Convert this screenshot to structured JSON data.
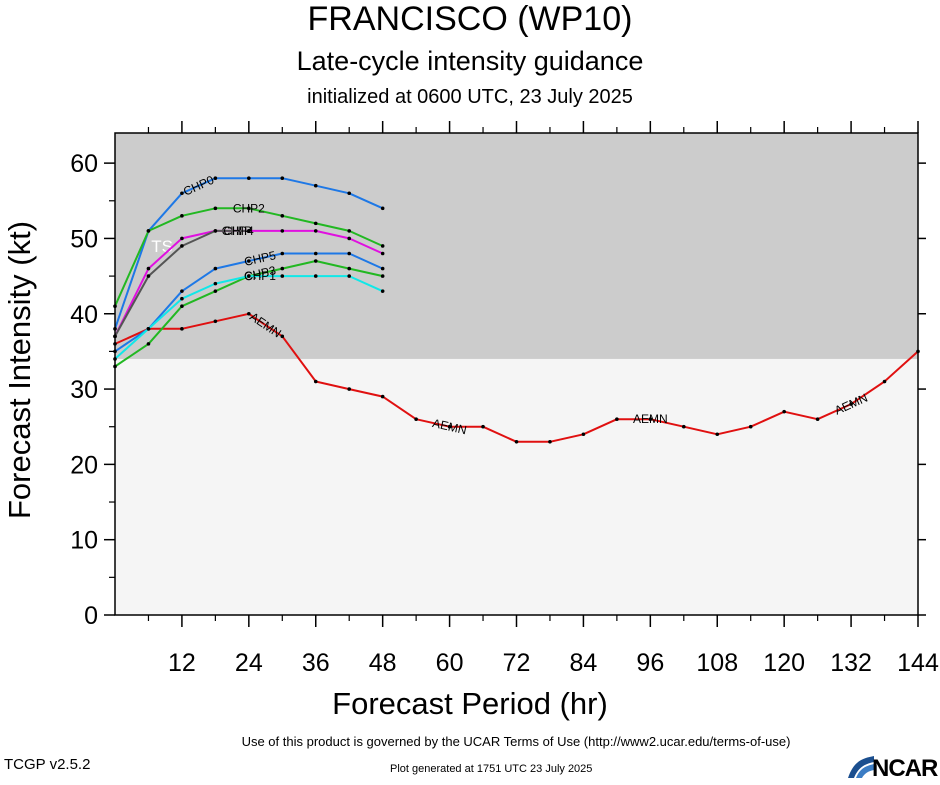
{
  "header": {
    "title": "FRANCISCO (WP10)",
    "subtitle": "Late-cycle intensity guidance",
    "initialized": "initialized at 0600 UTC, 23 July 2025"
  },
  "footer": {
    "terms": "Use of this product is governed by the UCAR Terms of Use (http://www2.ucar.edu/terms-of-use)",
    "version": "TCGP v2.5.2",
    "generated": "Plot generated at 1751 UTC   23 July 2025",
    "logo_text": "NCAR"
  },
  "colors": {
    "storm_band": "#cccccc",
    "below_band": "#f5f5f5"
  },
  "chart_data": {
    "type": "line",
    "xlabel": "Forecast Period (hr)",
    "ylabel": "Forecast Intensity (kt)",
    "xlim": [
      0,
      144
    ],
    "ylim": [
      0,
      64
    ],
    "xticks": [
      12,
      24,
      36,
      48,
      60,
      72,
      84,
      96,
      108,
      120,
      132,
      144
    ],
    "yticks": [
      0,
      10,
      20,
      30,
      40,
      50,
      60
    ],
    "shaded_band": {
      "from": 34,
      "to": 64,
      "label": "TS"
    },
    "grid": false,
    "series": [
      {
        "name": "AEMN",
        "color": "#e01010",
        "x": [
          0,
          6,
          12,
          18,
          24,
          30,
          36,
          42,
          48,
          54,
          60,
          66,
          72,
          78,
          84,
          90,
          96,
          102,
          108,
          114,
          120,
          126,
          132,
          138,
          144
        ],
        "values": [
          36,
          38,
          38,
          39,
          40,
          37,
          31,
          30,
          29,
          26,
          25,
          25,
          23,
          23,
          24,
          26,
          26,
          25,
          24,
          25,
          27,
          26,
          28,
          31,
          35
        ],
        "labels_at": [
          27,
          60,
          96,
          132
        ]
      },
      {
        "name": "CHP0",
        "color": "#1e78e6",
        "x": [
          0,
          6,
          12,
          18,
          24,
          30,
          36,
          42,
          48
        ],
        "values": [
          38,
          51,
          56,
          58,
          58,
          58,
          57,
          56,
          54
        ],
        "labels_at": [
          15
        ]
      },
      {
        "name": "CHP2",
        "color": "#22b822",
        "x": [
          0,
          6,
          12,
          18,
          24,
          30,
          36,
          42,
          48
        ],
        "values": [
          41,
          51,
          53,
          54,
          54,
          53,
          52,
          51,
          49
        ],
        "labels_at": [
          24
        ]
      },
      {
        "name": "CHP4",
        "color": "#e010e0",
        "x": [
          0,
          6,
          12,
          18,
          24,
          30,
          36,
          42,
          48
        ],
        "values": [
          37,
          46,
          50,
          51,
          51,
          51,
          51,
          50,
          48
        ],
        "labels_at": [
          22
        ]
      },
      {
        "name": "CHIP",
        "color": "#555555",
        "x": [
          0,
          6,
          12,
          18,
          24
        ],
        "values": [
          37,
          45,
          49,
          51,
          51
        ],
        "labels_at": [
          22
        ]
      },
      {
        "name": "CHP5",
        "color": "#1e78e6",
        "x": [
          0,
          6,
          12,
          18,
          24,
          30,
          36,
          42,
          48
        ],
        "values": [
          35,
          38,
          43,
          46,
          47,
          48,
          48,
          48,
          46
        ],
        "labels_at": [
          26
        ]
      },
      {
        "name": "CHP3",
        "color": "#22b822",
        "x": [
          0,
          6,
          12,
          18,
          24,
          30,
          36,
          42,
          48
        ],
        "values": [
          33,
          36,
          41,
          43,
          45,
          46,
          47,
          46,
          45
        ],
        "labels_at": [
          26
        ]
      },
      {
        "name": "CHP1",
        "color": "#10e8e8",
        "x": [
          0,
          6,
          12,
          18,
          24,
          30,
          36,
          42,
          48
        ],
        "values": [
          34,
          38,
          42,
          44,
          45,
          45,
          45,
          45,
          43
        ],
        "labels_at": [
          26
        ]
      }
    ]
  }
}
